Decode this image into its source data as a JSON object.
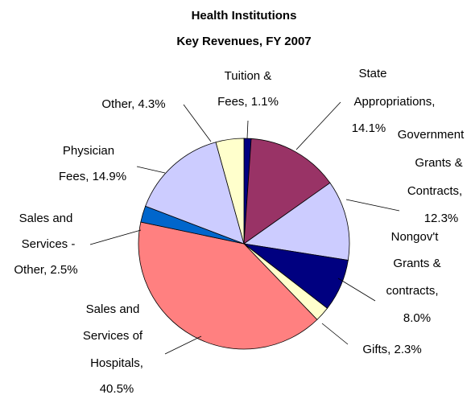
{
  "chart_data": {
    "type": "pie",
    "title": [
      "Health Institutions",
      "Key Revenues, FY 2007"
    ],
    "values": [
      1.1,
      14.1,
      12.3,
      8.0,
      2.3,
      40.5,
      2.5,
      14.9,
      4.3
    ],
    "value_labels": [
      [
        "Tuition &",
        "Fees, 1.1%"
      ],
      [
        "State",
        "Appropriations,",
        "14.1%"
      ],
      [
        "Government",
        "Grants &",
        "Contracts,",
        "12.3%"
      ],
      [
        "Nongov't",
        "Grants &",
        "contracts,",
        "8.0%"
      ],
      [
        "Gifts, 2.3%"
      ],
      [
        "Sales and",
        "Services of",
        "Hospitals,",
        "40.5%"
      ],
      [
        "Sales and",
        "Services -",
        "Other, 2.5%"
      ],
      [
        "Physician",
        "Fees, 14.9%"
      ],
      [
        "Other, 4.3%"
      ]
    ],
    "colors": [
      "#000080",
      "#993366",
      "#ccccff",
      "#000080",
      "#ffffcc",
      "#ff8080",
      "#0066cc",
      "#ccccff",
      "#ffffcc"
    ]
  }
}
